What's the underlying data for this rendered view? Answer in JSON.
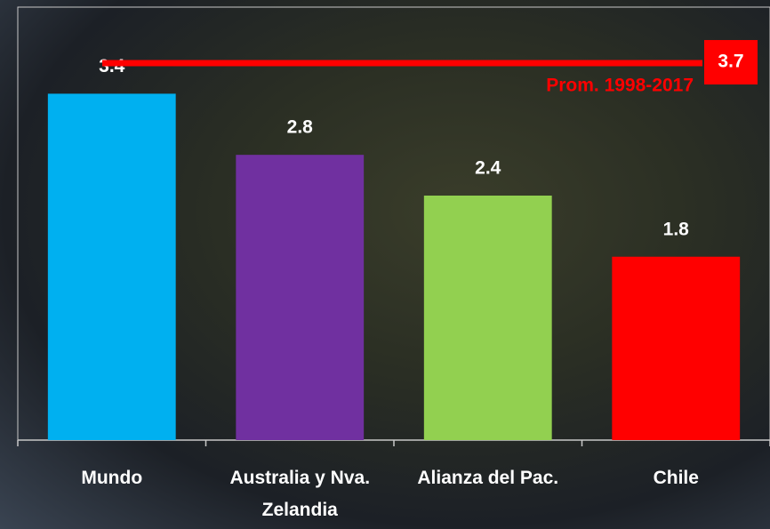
{
  "chart_data": {
    "type": "bar",
    "categories": [
      "Mundo",
      "Australia y Nva. Zelandia",
      "Alianza del Pac.",
      "Chile"
    ],
    "values": [
      3.4,
      2.8,
      2.4,
      1.8
    ],
    "colors": [
      "#00b0f0",
      "#7030a0",
      "#92d050",
      "#ff0000"
    ],
    "ylim": [
      0,
      4.25
    ],
    "reference": {
      "value": 3.7,
      "label": "Prom. 1998-2017",
      "color": "#ff0000"
    }
  }
}
